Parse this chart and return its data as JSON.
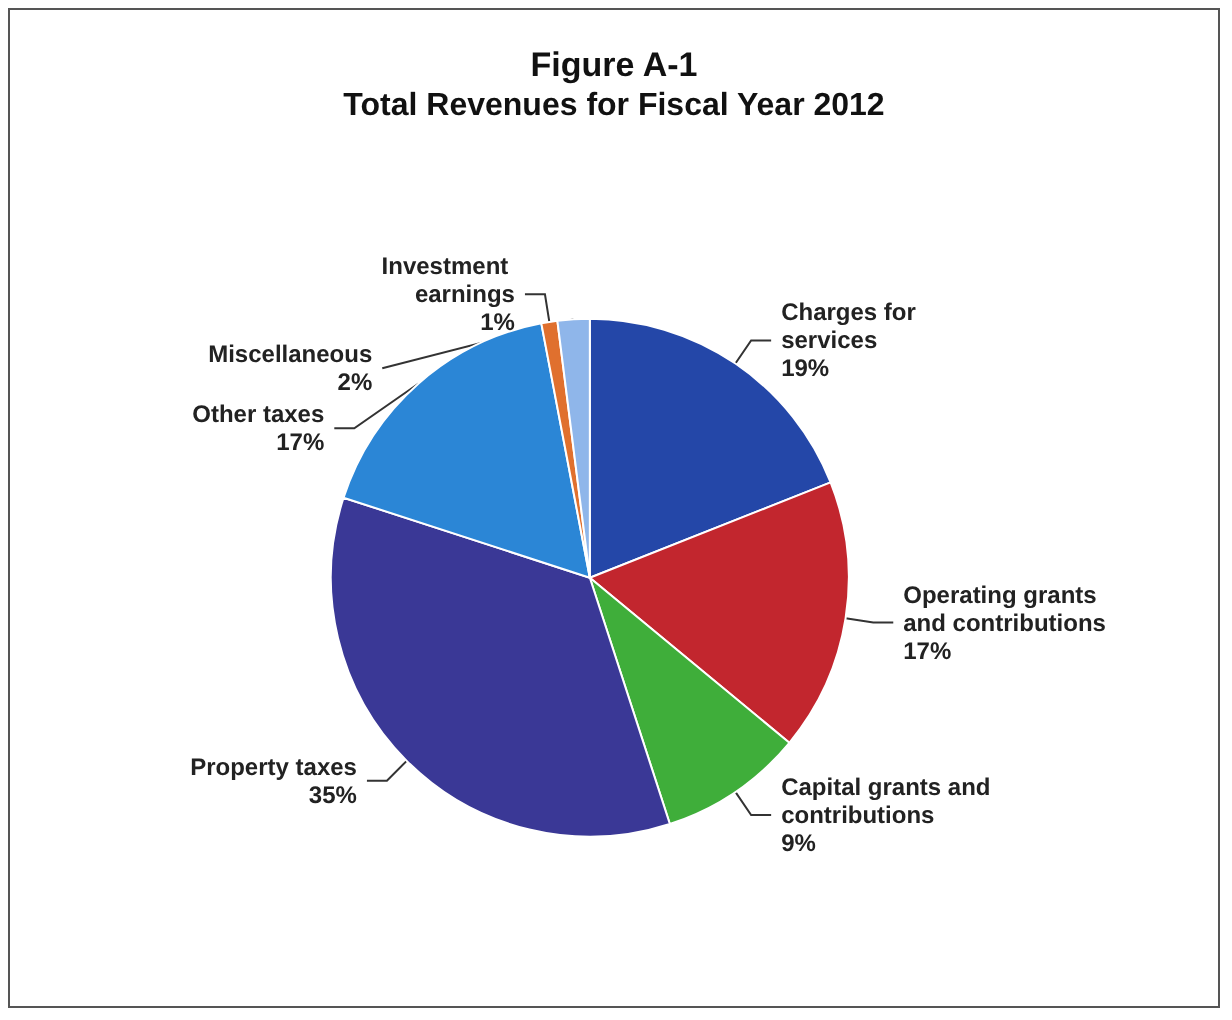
{
  "chart_data": {
    "type": "pie",
    "title": "Figure A-1",
    "subtitle": "Total Revenues for Fiscal Year 2012",
    "categories": [
      "Charges for services",
      "Operating grants and contributions",
      "Capital grants and contributions",
      "Property taxes",
      "Other taxes",
      "Investment earnings",
      "Miscellaneous"
    ],
    "values": [
      19,
      17,
      9,
      35,
      17,
      1,
      2
    ],
    "value_labels": [
      "19%",
      "17%",
      "9%",
      "35%",
      "17%",
      "1%",
      "2%"
    ],
    "colors": [
      "#2447a8",
      "#c2262e",
      "#3fae3a",
      "#3a3896",
      "#2b86d6",
      "#e0702e",
      "#8fb6ea"
    ],
    "legend": false
  }
}
